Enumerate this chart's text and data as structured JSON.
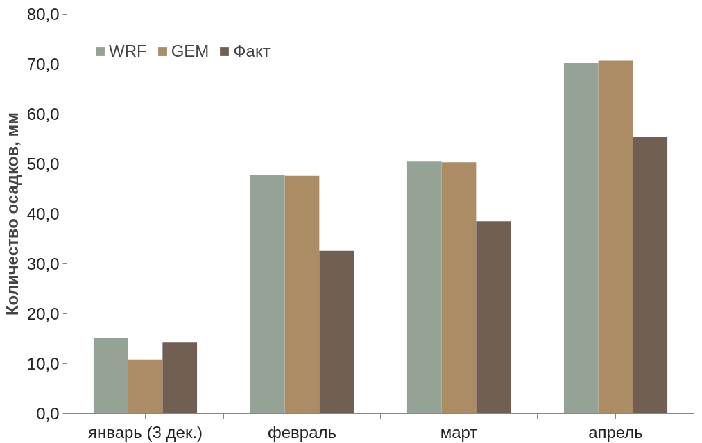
{
  "chart_data": {
    "type": "bar",
    "ylabel": "Количество осадков, мм",
    "categories": [
      "январь (3 дек.)",
      "февраль",
      "март",
      "апрель"
    ],
    "series": [
      {
        "name": "WRF",
        "color": "#94a396",
        "values": [
          15.2,
          47.7,
          50.6,
          70.2
        ]
      },
      {
        "name": "GEM",
        "color": "#ab8c64",
        "values": [
          10.8,
          47.6,
          50.3,
          70.7
        ]
      },
      {
        "name": "Факт",
        "color": "#725f54",
        "values": [
          14.2,
          32.6,
          38.5,
          55.4
        ]
      }
    ],
    "ylim": [
      0,
      80
    ],
    "yticks": [
      {
        "value": 0,
        "label": "0,0"
      },
      {
        "value": 10,
        "label": "10,0"
      },
      {
        "value": 20,
        "label": "20,0"
      },
      {
        "value": 30,
        "label": "30,0"
      },
      {
        "value": 40,
        "label": "40,0"
      },
      {
        "value": 50,
        "label": "50,0"
      },
      {
        "value": 60,
        "label": "60,0"
      },
      {
        "value": 70,
        "label": "70,0"
      },
      {
        "value": 80,
        "label": "80,0"
      }
    ],
    "ref_lines": [
      {
        "axis": "y",
        "value": 70,
        "color": "#888888"
      }
    ],
    "grid": false,
    "legend": "top left"
  }
}
